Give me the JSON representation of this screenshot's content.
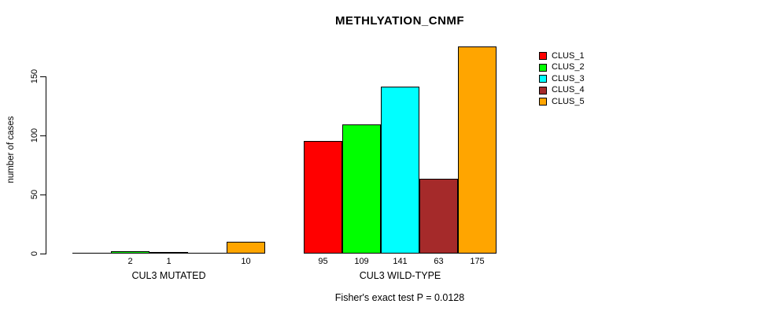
{
  "chart_data": {
    "type": "bar",
    "title": "METHLYATION_CNMF",
    "ylabel": "number of cases",
    "xlabel": "",
    "ylim": [
      0,
      175
    ],
    "yticks": [
      0,
      50,
      100,
      150
    ],
    "grid": false,
    "legend_position": "top-right",
    "categories": [
      "CUL3 MUTATED",
      "CUL3 WILD-TYPE"
    ],
    "series": [
      {
        "name": "CLUS_1",
        "color": "#FF0000",
        "values": [
          0,
          95
        ]
      },
      {
        "name": "CLUS_2",
        "color": "#00FF00",
        "values": [
          2,
          109
        ]
      },
      {
        "name": "CLUS_3",
        "color": "#00FFFF",
        "values": [
          1,
          141
        ]
      },
      {
        "name": "CLUS_4",
        "color": "#A52A2A",
        "values": [
          0,
          63
        ]
      },
      {
        "name": "CLUS_5",
        "color": "#FFA500",
        "values": [
          10,
          175
        ]
      }
    ],
    "bar_value_labels": {
      "CUL3 MUTATED": [
        "2",
        "1",
        "10"
      ],
      "CUL3 WILD-TYPE": [
        "95",
        "109",
        "141",
        "63",
        "175"
      ],
      "note": "labels shown only for bars with value > 0"
    },
    "annotation": "Fisher's exact test P = 0.0128"
  },
  "colors": {
    "axis": "#000000",
    "background": "#ffffff",
    "bar_border": "#000000"
  }
}
